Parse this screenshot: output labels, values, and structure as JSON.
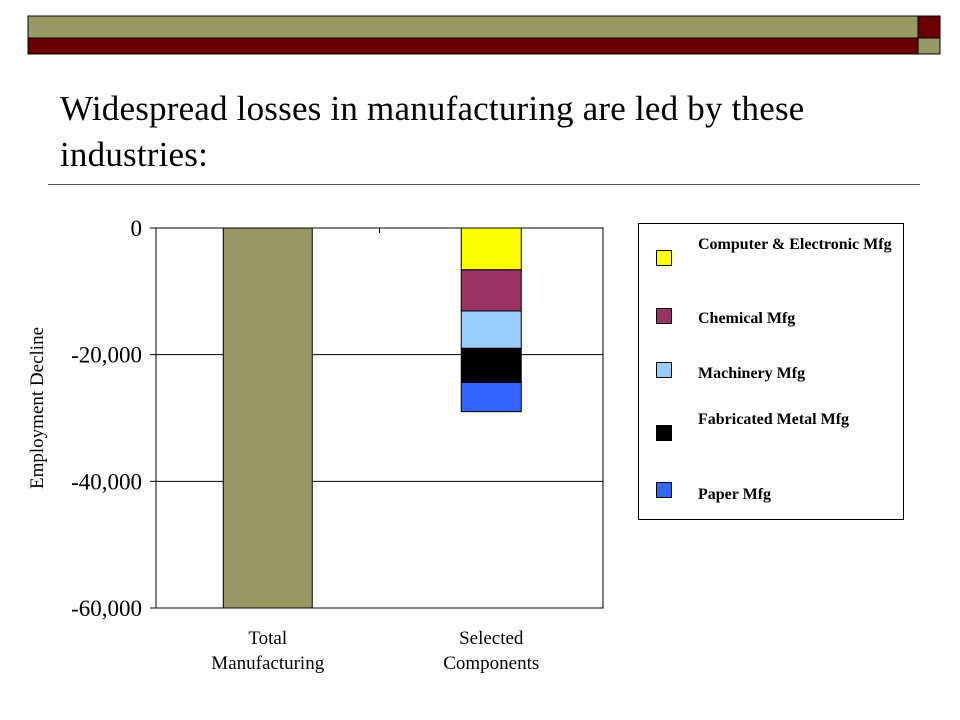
{
  "slide": {
    "title": "Widespread losses in manufacturing are led by these industries:",
    "colors": {
      "band_olive": "#999966",
      "band_maroon": "#6b0000",
      "rule": "#555555"
    }
  },
  "chart_data": {
    "type": "bar",
    "stacked": true,
    "categories": [
      "Total Manufacturing",
      "Selected Components"
    ],
    "ylabel": "Employment Decline",
    "ylim": [
      -60000,
      0
    ],
    "yticks": [
      0,
      -20000,
      -40000,
      -60000
    ],
    "ytick_labels": [
      "0",
      "-20,000",
      "-40,000",
      "-60,000"
    ],
    "grid": true,
    "legend_position": "right",
    "series": [
      {
        "name": "",
        "color": "#999966",
        "values": [
          -60000,
          0
        ]
      },
      {
        "name": "Computer & Electronic Mfg",
        "color": "#ffff00",
        "values": [
          0,
          -6600
        ]
      },
      {
        "name": "Chemical Mfg",
        "color": "#993366",
        "values": [
          0,
          -6500
        ]
      },
      {
        "name": "Machinery Mfg",
        "color": "#99ccff",
        "values": [
          0,
          -5900
        ]
      },
      {
        "name": "Fabricated Metal Mfg",
        "color": "#000000",
        "values": [
          0,
          -5400
        ]
      },
      {
        "name": "Paper Mfg",
        "color": "#3366ff",
        "values": [
          0,
          -4600
        ]
      }
    ]
  }
}
